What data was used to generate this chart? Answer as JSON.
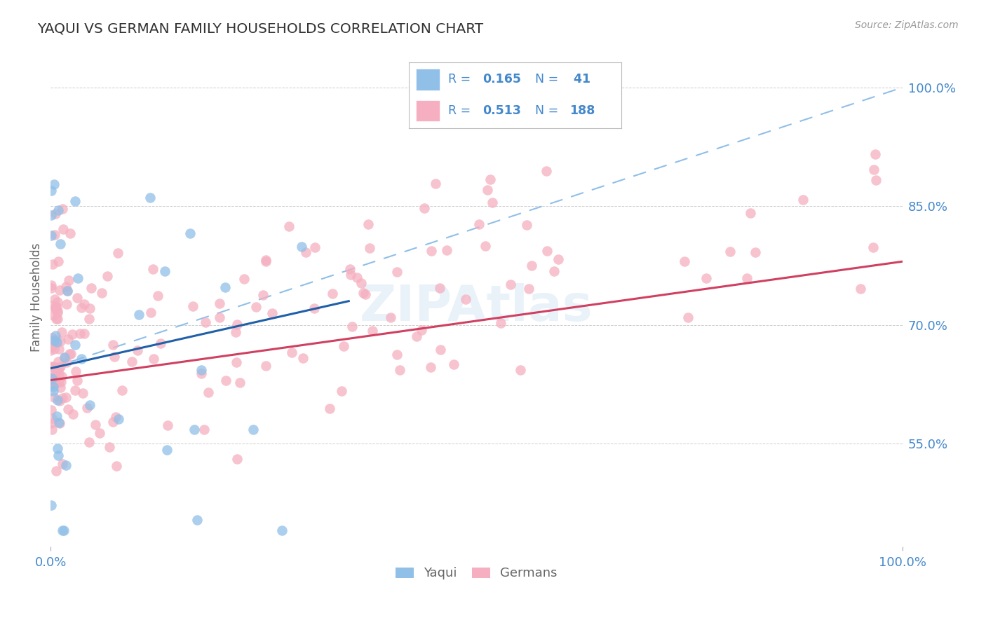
{
  "title": "YAQUI VS GERMAN FAMILY HOUSEHOLDS CORRELATION CHART",
  "source": "Source: ZipAtlas.com",
  "ylabel_left": "Family Households",
  "yaqui_R": 0.165,
  "yaqui_N": 41,
  "german_R": 0.513,
  "german_N": 188,
  "xmin": 0.0,
  "xmax": 1.0,
  "ymin": 0.42,
  "ymax": 1.05,
  "right_yticks": [
    0.55,
    0.7,
    0.85,
    1.0
  ],
  "right_ytick_labels": [
    "55.0%",
    "70.0%",
    "85.0%",
    "100.0%"
  ],
  "xtick_positions": [
    0.0,
    1.0
  ],
  "xtick_labels": [
    "0.0%",
    "100.0%"
  ],
  "grid_color": "#cccccc",
  "background_color": "#ffffff",
  "title_color": "#333333",
  "axis_label_color": "#4488cc",
  "legend_text_color": "#4488cc",
  "yaqui_scatter_color": "#90bfe8",
  "german_scatter_color": "#f5afc0",
  "yaqui_line_color": "#2060a8",
  "german_line_color": "#d04060",
  "dashed_line_color": "#90bfe8",
  "watermark_color": "#c8dff0",
  "watermark_alpha": 0.4,
  "yaqui_line_x": [
    0.0,
    0.35
  ],
  "yaqui_line_y": [
    0.645,
    0.73
  ],
  "dashed_line_x": [
    0.0,
    1.0
  ],
  "dashed_line_y": [
    0.645,
    1.0
  ],
  "german_line_x": [
    0.0,
    1.0
  ],
  "german_line_y": [
    0.63,
    0.78
  ]
}
